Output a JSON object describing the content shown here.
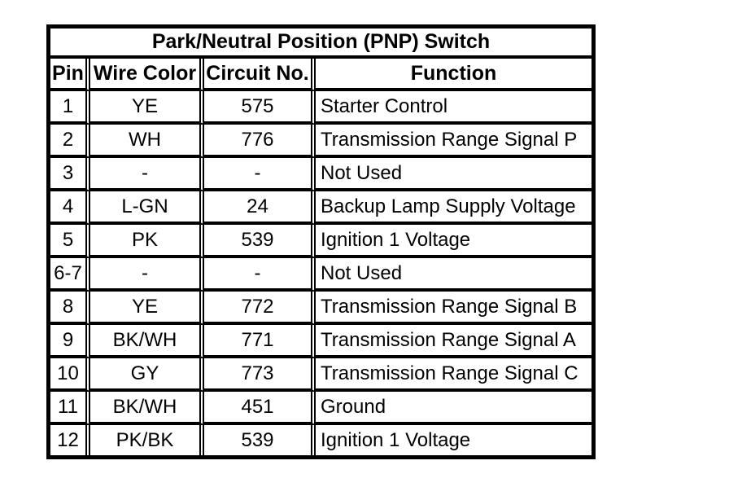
{
  "chart_data": {
    "type": "table",
    "title": "Park/Neutral Position (PNP) Switch",
    "columns": [
      "Pin",
      "Wire Color",
      "Circuit No.",
      "Function"
    ],
    "rows": [
      {
        "pin": "1",
        "wire_color": "YE",
        "circuit_no": "575",
        "function": "Starter Control"
      },
      {
        "pin": "2",
        "wire_color": "WH",
        "circuit_no": "776",
        "function": "Transmission Range Signal P"
      },
      {
        "pin": "3",
        "wire_color": "-",
        "circuit_no": "-",
        "function": "Not Used"
      },
      {
        "pin": "4",
        "wire_color": "L-GN",
        "circuit_no": "24",
        "function": "Backup Lamp Supply Voltage"
      },
      {
        "pin": "5",
        "wire_color": "PK",
        "circuit_no": "539",
        "function": "Ignition 1 Voltage"
      },
      {
        "pin": "6-7",
        "wire_color": "-",
        "circuit_no": "-",
        "function": "Not Used"
      },
      {
        "pin": "8",
        "wire_color": "YE",
        "circuit_no": "772",
        "function": "Transmission Range Signal B"
      },
      {
        "pin": "9",
        "wire_color": "BK/WH",
        "circuit_no": "771",
        "function": "Transmission Range Signal A"
      },
      {
        "pin": "10",
        "wire_color": "GY",
        "circuit_no": "773",
        "function": "Transmission Range Signal C"
      },
      {
        "pin": "11",
        "wire_color": "BK/WH",
        "circuit_no": "451",
        "function": "Ground"
      },
      {
        "pin": "12",
        "wire_color": "PK/BK",
        "circuit_no": "539",
        "function": "Ignition 1 Voltage"
      }
    ],
    "layout": {
      "grid": "on",
      "title_position": "top-center",
      "function_column_alignment": "left",
      "other_columns_alignment": "center"
    },
    "colors": {
      "border": "#000000",
      "background": "#ffffff",
      "text": "#000000"
    }
  }
}
